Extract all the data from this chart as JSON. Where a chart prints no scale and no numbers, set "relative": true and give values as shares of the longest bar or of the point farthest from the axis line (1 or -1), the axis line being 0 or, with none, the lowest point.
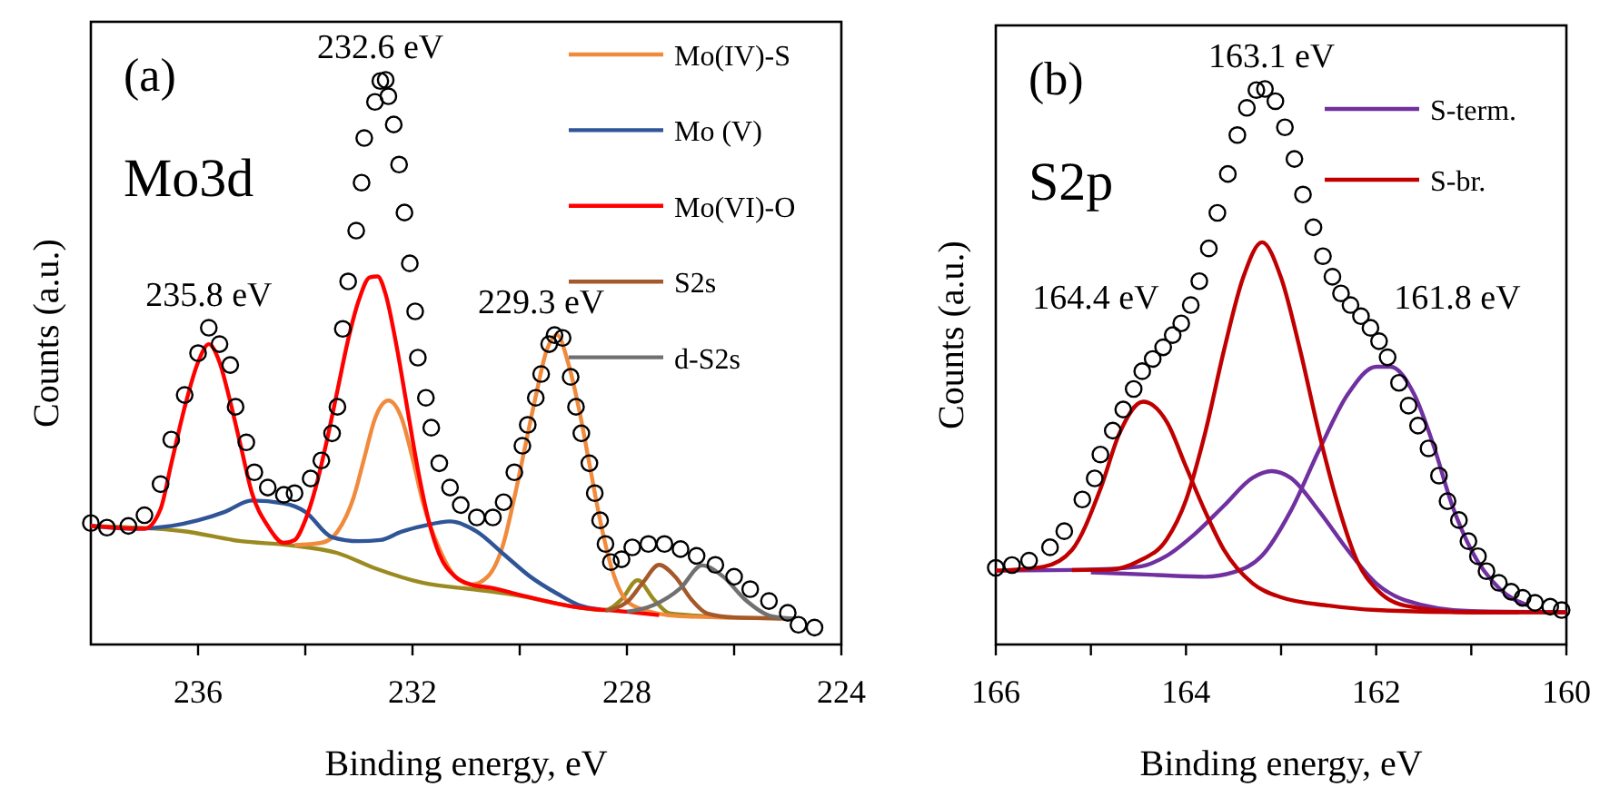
{
  "chart_data": [
    {
      "type": "line",
      "relative": true,
      "xlabel": "Binding energy, eV",
      "ylabel": "Counts (a.u.)",
      "xlim": [
        238,
        224
      ],
      "xticks": [
        236,
        {
          "value": 234,
          "label": null
        },
        232,
        {
          "value": 230,
          "label": null
        },
        228,
        {
          "value": 226,
          "label": null
        },
        224
      ],
      "legend": "top right",
      "marker": "none",
      "line_style": "solid",
      "annotations": [
        "(a)",
        "Mo3d",
        {
          "text": "232.6 eV",
          "x": 232.6,
          "y": 1.0
        },
        {
          "text": "235.8 eV",
          "x": 235.8,
          "y": 0.561
        },
        {
          "text": "229.3 eV",
          "x": 229.6,
          "y": 0.548
        }
      ],
      "series": [
        {
          "color": "#9a8a20",
          "x": [
            238,
            236.3,
            235.2,
            234.3,
            233.4,
            232.7,
            231.8,
            230.9,
            230.1,
            229.0,
            228.4,
            228.1,
            227.8,
            227.5,
            227.2,
            226.0,
            224.9
          ],
          "values": [
            0.21,
            0.201,
            0.183,
            0.176,
            0.162,
            0.135,
            0.109,
            0.098,
            0.088,
            0.067,
            0.061,
            0.08,
            0.114,
            0.08,
            0.055,
            0.048,
            0.046
          ]
        },
        {
          "name": "Mo(IV)-S",
          "color": "#f08a3c",
          "x": [
            234.2,
            233.7,
            233.4,
            233.1,
            232.9,
            232.7,
            232.45,
            232.2,
            232.0,
            231.8,
            231.5,
            231.2,
            230.9,
            230.6,
            230.3,
            230.1,
            229.9,
            229.7,
            229.5,
            229.3,
            229.1,
            228.9,
            228.7,
            228.5,
            228.3,
            228.1,
            227.8,
            227.0,
            225.0
          ],
          "values": [
            0.176,
            0.18,
            0.2,
            0.26,
            0.33,
            0.4,
            0.432,
            0.4,
            0.33,
            0.25,
            0.17,
            0.12,
            0.106,
            0.12,
            0.18,
            0.26,
            0.35,
            0.44,
            0.52,
            0.548,
            0.5,
            0.42,
            0.32,
            0.22,
            0.14,
            0.09,
            0.065,
            0.05,
            0.046
          ]
        },
        {
          "name": "Mo (V)",
          "color": "#2f5597",
          "x": [
            238,
            237.2,
            236.5,
            236.0,
            235.5,
            235.0,
            234.4,
            234.0,
            233.5,
            233.0,
            232.6,
            232.2,
            231.8,
            231.3,
            230.8,
            230.3,
            229.8,
            229.3,
            228.9,
            228.5
          ],
          "values": [
            0.21,
            0.205,
            0.21,
            0.22,
            0.235,
            0.255,
            0.25,
            0.235,
            0.19,
            0.183,
            0.185,
            0.2,
            0.21,
            0.218,
            0.2,
            0.16,
            0.12,
            0.09,
            0.07,
            0.062
          ]
        },
        {
          "name": "Mo(VI)-O",
          "color": "#ff0000",
          "x": [
            238,
            237.0,
            236.7,
            236.5,
            236.25,
            236.0,
            235.8,
            235.6,
            235.4,
            235.2,
            235.0,
            234.7,
            234.4,
            234.2,
            234.0,
            233.8,
            233.6,
            233.4,
            233.2,
            233.0,
            232.8,
            232.65,
            232.5,
            232.3,
            232.1,
            231.9,
            231.7,
            231.5,
            231.2,
            230.9,
            230.5,
            230.0,
            229.0,
            228.0,
            227.4
          ],
          "values": [
            0.21,
            0.205,
            0.24,
            0.32,
            0.42,
            0.5,
            0.532,
            0.5,
            0.43,
            0.35,
            0.27,
            0.21,
            0.18,
            0.185,
            0.22,
            0.28,
            0.36,
            0.45,
            0.54,
            0.61,
            0.65,
            0.652,
            0.62,
            0.53,
            0.42,
            0.31,
            0.22,
            0.16,
            0.12,
            0.106,
            0.1,
            0.088,
            0.067,
            0.058,
            0.052
          ]
        },
        {
          "name": "S2s",
          "color": "#a5582a",
          "x": [
            228.4,
            228.0,
            227.7,
            227.4,
            227.1,
            226.8,
            226.5,
            226.0,
            225.0
          ],
          "values": [
            0.06,
            0.075,
            0.11,
            0.141,
            0.12,
            0.08,
            0.055,
            0.048,
            0.046
          ]
        },
        {
          "name": "d-S2s",
          "color": "#707070",
          "x": [
            228.0,
            227.5,
            227.0,
            226.6,
            226.2,
            225.8,
            225.3,
            224.9
          ],
          "values": [
            0.058,
            0.07,
            0.1,
            0.14,
            0.12,
            0.08,
            0.05,
            0.046
          ]
        },
        {
          "type": "scatter",
          "marker": "circle",
          "color": "#000000",
          "x": [
            238.0,
            237.7,
            237.3,
            237.0,
            236.7,
            236.5,
            236.25,
            236.0,
            235.8,
            235.6,
            235.4,
            235.3,
            235.1,
            234.95,
            234.7,
            234.4,
            234.2,
            233.9,
            233.7,
            233.5,
            233.4,
            233.3,
            233.2,
            233.05,
            232.95,
            232.9,
            232.7,
            232.6,
            232.5,
            232.45,
            232.35,
            232.25,
            232.15,
            232.05,
            231.95,
            231.9,
            231.75,
            231.65,
            231.5,
            231.3,
            231.1,
            230.8,
            230.5,
            230.3,
            230.1,
            229.95,
            229.85,
            229.7,
            229.6,
            229.45,
            229.35,
            229.2,
            229.05,
            228.95,
            228.85,
            228.7,
            228.6,
            228.5,
            228.4,
            228.3,
            228.1,
            227.9,
            227.6,
            227.3,
            227.0,
            226.7,
            226.35,
            226.0,
            225.7,
            225.35,
            225.0,
            224.8,
            224.5
          ],
          "values": [
            0.215,
            0.207,
            0.21,
            0.229,
            0.284,
            0.363,
            0.442,
            0.516,
            0.561,
            0.532,
            0.495,
            0.421,
            0.358,
            0.305,
            0.278,
            0.265,
            0.268,
            0.294,
            0.326,
            0.374,
            0.421,
            0.559,
            0.643,
            0.733,
            0.818,
            0.897,
            0.961,
            0.998,
            1.0,
            0.971,
            0.921,
            0.85,
            0.765,
            0.675,
            0.59,
            0.508,
            0.437,
            0.384,
            0.321,
            0.278,
            0.247,
            0.225,
            0.225,
            0.252,
            0.305,
            0.352,
            0.389,
            0.437,
            0.479,
            0.532,
            0.548,
            0.543,
            0.474,
            0.421,
            0.374,
            0.321,
            0.268,
            0.22,
            0.178,
            0.146,
            0.151,
            0.172,
            0.178,
            0.178,
            0.169,
            0.157,
            0.141,
            0.12,
            0.098,
            0.077,
            0.056,
            0.035,
            0.03
          ]
        }
      ]
    },
    {
      "type": "line",
      "relative": true,
      "xlabel": "Binding energy, eV",
      "ylabel": "Counts (a.u.)",
      "xlim": [
        166,
        160
      ],
      "xticks": [
        166,
        {
          "value": 165,
          "label": null
        },
        164,
        {
          "value": 163,
          "label": null
        },
        162,
        {
          "value": 161,
          "label": null
        },
        160
      ],
      "legend": "top right",
      "marker": "none",
      "line_style": "solid",
      "annotations": [
        "(b)",
        "S2p",
        {
          "text": "163.1 eV",
          "x": 163.1,
          "y": 1.0
        },
        "164.4 eV",
        "161.8 eV"
      ],
      "series": [
        {
          "name": "S-term.",
          "color": "#7030a0",
          "x": [
            166,
            165.0,
            164.5,
            164.2,
            163.9,
            163.6,
            163.3,
            163.1,
            162.9,
            162.6,
            162.3,
            162.0,
            161.7,
            161.0,
            160
          ],
          "values": [
            0.133,
            0.135,
            0.14,
            0.16,
            0.2,
            0.25,
            0.3,
            0.312,
            0.3,
            0.24,
            0.17,
            0.11,
            0.08,
            0.06,
            0.058
          ]
        },
        {
          "color": "#7030a0",
          "x": [
            165.0,
            164.3,
            163.8,
            163.5,
            163.2,
            162.9,
            162.6,
            162.3,
            162.0,
            161.85,
            161.6,
            161.4,
            161.2,
            161.0,
            160.7,
            160.4
          ],
          "values": [
            0.13,
            0.125,
            0.122,
            0.13,
            0.16,
            0.24,
            0.35,
            0.45,
            0.5,
            0.5,
            0.45,
            0.36,
            0.25,
            0.17,
            0.1,
            0.07
          ]
        },
        {
          "name": "S-br.",
          "color": "#c00000",
          "x": [
            166,
            165.5,
            165.2,
            164.9,
            164.7,
            164.45,
            164.2,
            164.0,
            163.8,
            163.6,
            163.3,
            163.0,
            162.5,
            162.0,
            161.0,
            160
          ],
          "values": [
            0.133,
            0.14,
            0.17,
            0.28,
            0.38,
            0.437,
            0.4,
            0.32,
            0.24,
            0.17,
            0.11,
            0.085,
            0.07,
            0.062,
            0.058,
            0.058
          ]
        },
        {
          "color": "#c00000",
          "x": [
            165.2,
            164.8,
            164.5,
            164.2,
            164.0,
            163.8,
            163.6,
            163.4,
            163.2,
            163.0,
            162.8,
            162.6,
            162.4,
            162.2,
            162.0,
            161.7,
            161.0,
            160.5
          ],
          "values": [
            0.134,
            0.135,
            0.15,
            0.19,
            0.26,
            0.38,
            0.53,
            0.66,
            0.724,
            0.66,
            0.53,
            0.38,
            0.25,
            0.15,
            0.1,
            0.07,
            0.058,
            0.058
          ]
        },
        {
          "type": "scatter",
          "marker": "circle",
          "color": "#000000",
          "x": [
            166.0,
            165.83,
            165.65,
            165.43,
            165.28,
            165.09,
            164.96,
            164.9,
            164.77,
            164.66,
            164.55,
            164.46,
            164.35,
            164.24,
            164.14,
            164.05,
            163.95,
            163.86,
            163.76,
            163.67,
            163.56,
            163.46,
            163.36,
            163.26,
            163.17,
            163.06,
            162.96,
            162.86,
            162.77,
            162.66,
            162.56,
            162.46,
            162.37,
            162.27,
            162.16,
            162.06,
            161.97,
            161.88,
            161.76,
            161.66,
            161.56,
            161.45,
            161.34,
            161.25,
            161.13,
            161.03,
            160.93,
            160.84,
            160.71,
            160.58,
            160.46,
            160.33,
            160.17,
            160.05
          ],
          "values": [
            0.138,
            0.143,
            0.151,
            0.175,
            0.204,
            0.261,
            0.299,
            0.342,
            0.385,
            0.423,
            0.46,
            0.492,
            0.514,
            0.535,
            0.557,
            0.578,
            0.611,
            0.654,
            0.713,
            0.777,
            0.847,
            0.917,
            0.966,
            0.998,
            1.0,
            0.978,
            0.931,
            0.874,
            0.81,
            0.751,
            0.699,
            0.662,
            0.632,
            0.611,
            0.591,
            0.57,
            0.546,
            0.517,
            0.471,
            0.43,
            0.394,
            0.353,
            0.304,
            0.258,
            0.224,
            0.186,
            0.159,
            0.132,
            0.111,
            0.095,
            0.084,
            0.075,
            0.068,
            0.062
          ]
        }
      ]
    }
  ]
}
